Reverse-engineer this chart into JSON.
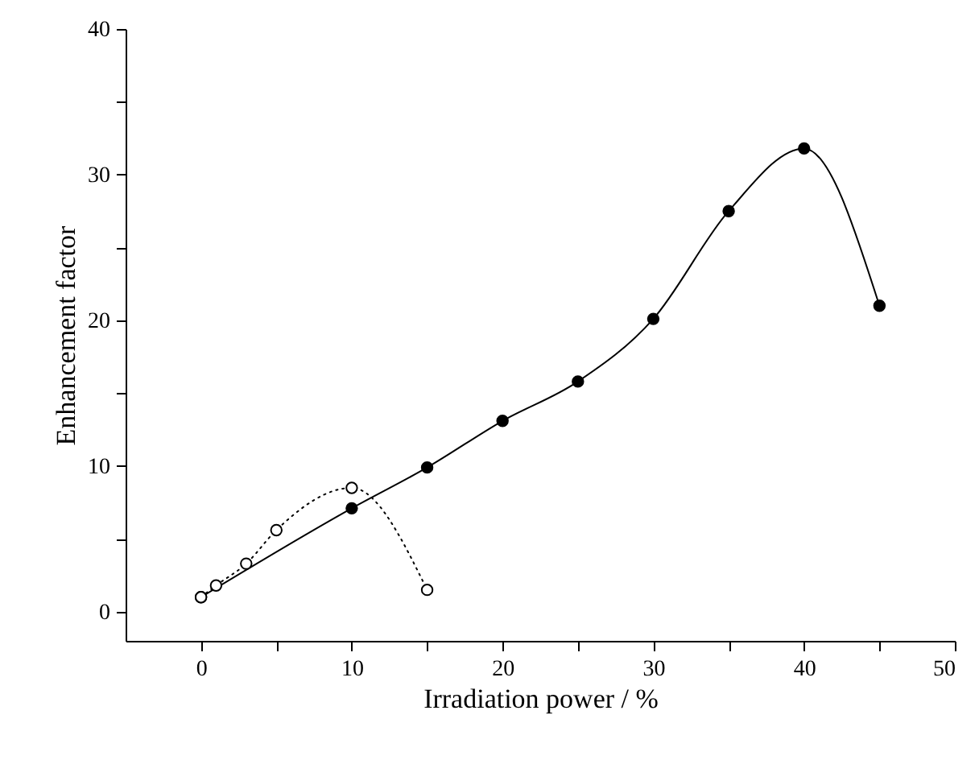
{
  "chart_data": {
    "type": "line",
    "xlabel": "Irradiation power / %",
    "ylabel": "Enhancement factor",
    "xlim": [
      -5,
      50
    ],
    "ylim": [
      -2,
      40
    ],
    "xticks": [
      0,
      {
        "value": 5,
        "label": null
      },
      10,
      {
        "value": 15,
        "label": null
      },
      20,
      {
        "value": 25,
        "label": null
      },
      30,
      {
        "value": 35,
        "label": null
      },
      40,
      {
        "value": 45,
        "label": null
      },
      50
    ],
    "yticks": [
      0,
      {
        "value": 5,
        "label": null
      },
      10,
      {
        "value": 15,
        "label": null
      },
      20,
      {
        "value": 25,
        "label": null
      },
      30,
      {
        "value": 35,
        "label": null
      },
      40
    ],
    "grid": false,
    "marker": "circle",
    "series": [
      {
        "color": "#000000",
        "line_style": "solid",
        "x": [
          0,
          10,
          15,
          20,
          25,
          30,
          35,
          40,
          45
        ],
        "values": [
          1,
          7.1,
          9.9,
          13.1,
          15.8,
          20.1,
          27.5,
          31.8,
          21
        ]
      },
      {
        "color": "#000000",
        "line_style": "dotted",
        "x": [
          0,
          1,
          3,
          5,
          10,
          15
        ],
        "values": [
          1,
          1.8,
          3.3,
          5.6,
          8.5,
          1.5
        ]
      }
    ]
  }
}
